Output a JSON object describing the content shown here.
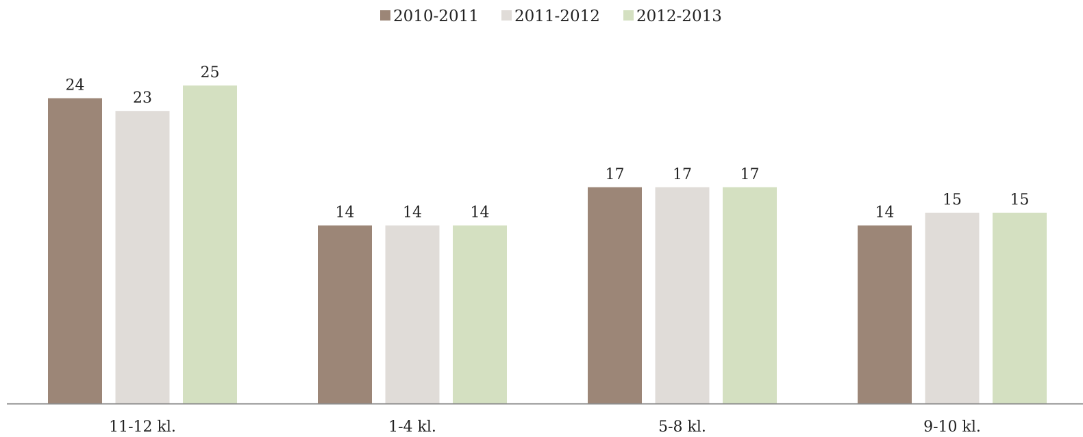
{
  "chart_data": {
    "type": "bar",
    "categories": [
      "11-12 kl.",
      "1-4 kl.",
      "5-8 kl.",
      "9-10 kl."
    ],
    "series": [
      {
        "name": "2010-2011",
        "color": "#9c8677",
        "values": [
          24,
          14,
          17,
          14
        ],
        "labels": [
          "24",
          "14",
          "17",
          "14"
        ]
      },
      {
        "name": "2011-2012",
        "color": "#e0dcd8",
        "values": [
          23,
          14,
          17,
          15
        ],
        "labels": [
          "23",
          "14",
          "17",
          "15"
        ]
      },
      {
        "name": "2012-2013",
        "color": "#d4e0c1",
        "values": [
          25,
          14,
          17,
          15
        ],
        "labels": [
          "25",
          "14",
          "17",
          "15"
        ]
      }
    ],
    "legend_position": "top",
    "axis_color": "#8c8c8c",
    "grid": false,
    "y_axis_visible": false
  }
}
